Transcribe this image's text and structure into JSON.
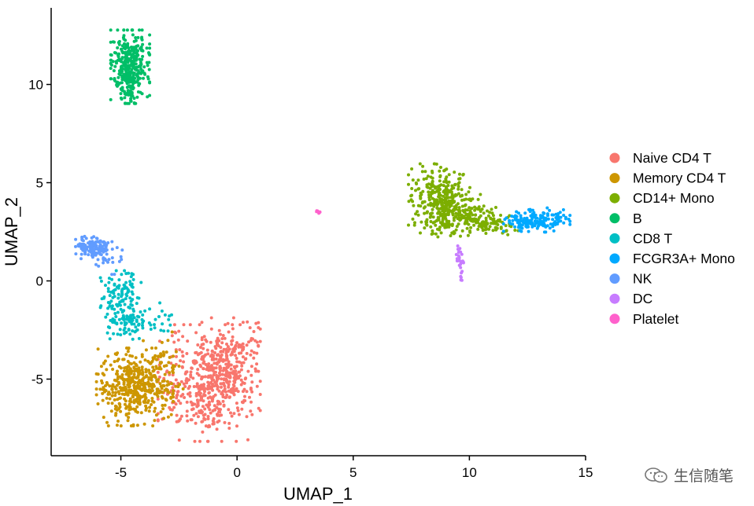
{
  "chart_data": {
    "type": "scatter",
    "xlabel": "UMAP_1",
    "ylabel": "UMAP_2",
    "xlim": [
      -8,
      15
    ],
    "ylim": [
      -8.9,
      13.9
    ],
    "xticks": [
      -5,
      0,
      5,
      10,
      15
    ],
    "yticks": [
      -5,
      0,
      5,
      10
    ],
    "grid": false,
    "legend_position": "right",
    "series": [
      {
        "name": "Naive CD4 T",
        "color": "#F8766D",
        "n": 620,
        "blobs": [
          {
            "cx": -1.2,
            "cy": -5.2,
            "sx": 1.0,
            "sy": 1.35,
            "w": 0.75
          },
          {
            "cx": -0.4,
            "cy": -4.3,
            "sx": 0.6,
            "sy": 1.1,
            "w": 0.25
          }
        ]
      },
      {
        "name": "Memory CD4 T",
        "color": "#CD9600",
        "n": 480,
        "blobs": [
          {
            "cx": -4.4,
            "cy": -5.4,
            "sx": 0.75,
            "sy": 0.9,
            "w": 0.85
          },
          {
            "cx": -3.2,
            "cy": -4.8,
            "sx": 0.4,
            "sy": 1.0,
            "w": 0.15
          }
        ]
      },
      {
        "name": "CD14+ Mono",
        "color": "#7CAE00",
        "n": 520,
        "blobs": [
          {
            "cx": 8.7,
            "cy": 4.2,
            "sx": 0.6,
            "sy": 0.8,
            "w": 0.55
          },
          {
            "cx": 9.6,
            "cy": 3.3,
            "sx": 0.7,
            "sy": 0.5,
            "w": 0.3
          },
          {
            "cx": 11.0,
            "cy": 2.9,
            "sx": 0.5,
            "sy": 0.25,
            "w": 0.15
          }
        ]
      },
      {
        "name": "B",
        "color": "#00BE67",
        "n": 340,
        "blobs": [
          {
            "cx": -4.6,
            "cy": 10.9,
            "sx": 0.38,
            "sy": 0.85,
            "w": 1.0
          }
        ]
      },
      {
        "name": "CD8 T",
        "color": "#00BFC4",
        "n": 200,
        "blobs": [
          {
            "cx": -5.0,
            "cy": -0.8,
            "sx": 0.4,
            "sy": 0.6,
            "w": 0.55
          },
          {
            "cx": -4.8,
            "cy": -2.2,
            "sx": 0.55,
            "sy": 0.35,
            "w": 0.35
          },
          {
            "cx": -3.2,
            "cy": -2.0,
            "sx": 0.5,
            "sy": 0.4,
            "w": 0.1
          }
        ]
      },
      {
        "name": "FCGR3A+ Mono",
        "color": "#00A9FF",
        "n": 170,
        "blobs": [
          {
            "cx": 12.9,
            "cy": 3.1,
            "sx": 0.65,
            "sy": 0.28,
            "w": 1.0
          }
        ]
      },
      {
        "name": "NK",
        "color": "#619CFF",
        "n": 150,
        "blobs": [
          {
            "cx": -6.2,
            "cy": 1.7,
            "sx": 0.38,
            "sy": 0.3,
            "w": 0.8
          },
          {
            "cx": -5.6,
            "cy": 1.1,
            "sx": 0.3,
            "sy": 0.35,
            "w": 0.2
          }
        ]
      },
      {
        "name": "DC",
        "color": "#C77CFF",
        "n": 30,
        "blobs": [
          {
            "cx": 9.6,
            "cy": 0.9,
            "sx": 0.08,
            "sy": 0.4,
            "w": 1.0
          }
        ]
      },
      {
        "name": "Platelet",
        "color": "#FF61CC",
        "n": 8,
        "blobs": [
          {
            "cx": 3.5,
            "cy": 3.5,
            "sx": 0.06,
            "sy": 0.05,
            "w": 1.0
          }
        ]
      }
    ]
  },
  "watermark": {
    "text": "生信随笔",
    "icon": "wechat-icon"
  }
}
